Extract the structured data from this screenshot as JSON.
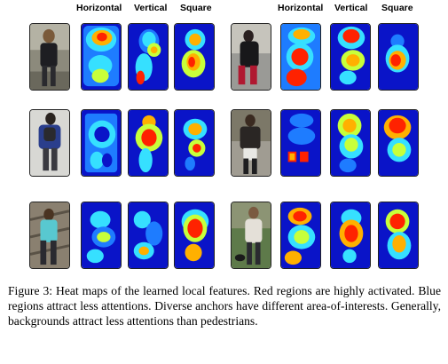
{
  "headers": {
    "left": [
      "Horizontal",
      "Vertical",
      "Square"
    ],
    "right": [
      "Horizontal",
      "Vertical",
      "Square"
    ]
  },
  "colors": {
    "low": "#0a14c8",
    "mid1": "#1e7cff",
    "mid2": "#36e0ff",
    "mid3": "#c8ff3a",
    "high1": "#ffb000",
    "high2": "#ff2200"
  },
  "icons": [
    "pedestrian-photo",
    "attention-heatmap"
  ],
  "caption": {
    "label": "Figure 3:",
    "text": "Heat maps of the learned local features. Red regions are highly activated. Blue regions attract less attentions. Diverse anchors have different area-of-interests. Generally, backgrounds attract less attentions than pedestrians."
  }
}
